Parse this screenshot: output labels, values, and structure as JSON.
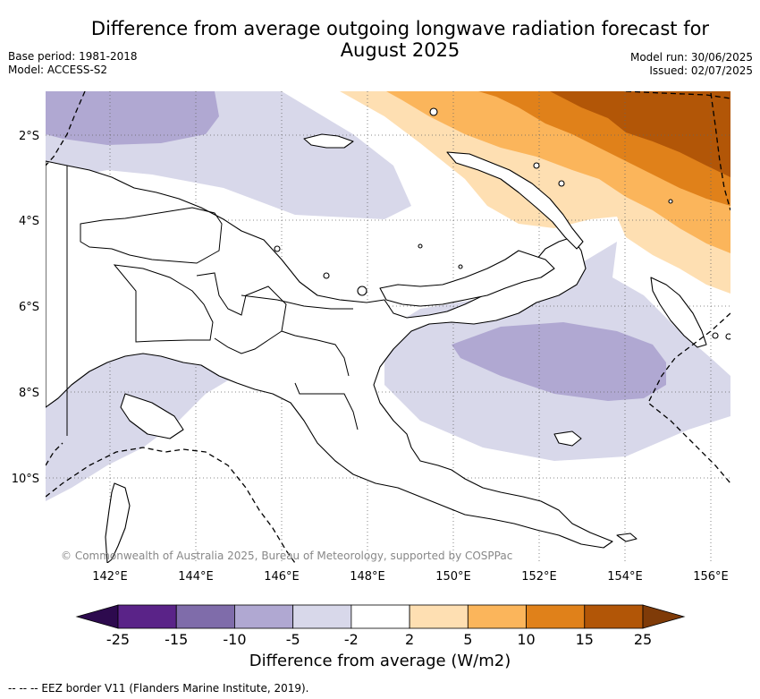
{
  "title_line1": "Difference from average outgoing longwave radiation forecast for",
  "title_line2": "August 2025",
  "base_period": "Base period: 1981-2018",
  "model": "Model: ACCESS-S2",
  "model_run": "Model run: 30/06/2025",
  "issued": "Issued: 02/07/2025",
  "copyright": "© Commonwealth of Australia 2025, Bureau of Meteorology, supported by COSPPac",
  "lat_labels": [
    "2°S",
    "4°S",
    "6°S",
    "8°S",
    "10°S"
  ],
  "lon_labels": [
    "142°E",
    "144°E",
    "146°E",
    "148°E",
    "150°E",
    "152°E",
    "154°E",
    "156°E"
  ],
  "colorbar": {
    "label": "Difference from average (W/m2)",
    "tick_labels": [
      "-25",
      "-15",
      "-10",
      "-5",
      "-2",
      "2",
      "5",
      "10",
      "15",
      "25"
    ],
    "colors": [
      "#2d0a4e",
      "#5a2388",
      "#7f6caa",
      "#b0a8d2",
      "#d8d8ea",
      "#ffffff",
      "#fedfb2",
      "#fbb55b",
      "#e0811a",
      "#b25607",
      "#7f3b08"
    ]
  },
  "footer_note": "--  --  -- EEZ border V11 (Flanders Marine Institute, 2019)."
}
